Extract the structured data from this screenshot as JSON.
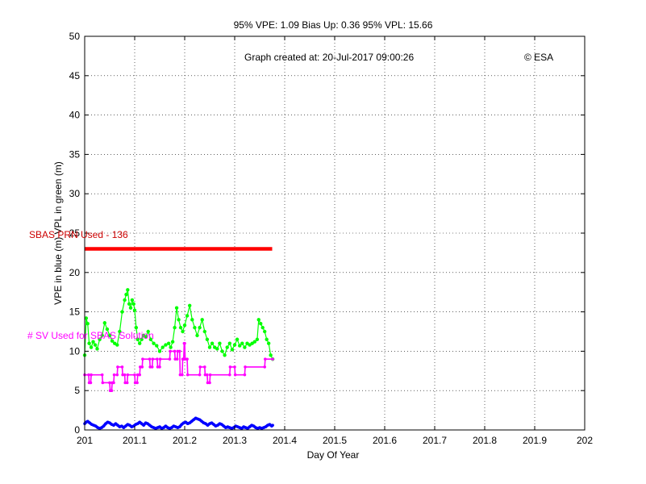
{
  "chart_data": {
    "type": "line",
    "title": "95% VPE: 1.09  Bias Up: 0.36  95% VPL: 15.66",
    "created_note": "Graph created at: 20-Jul-2017 09:00:26",
    "copyright": "© ESA",
    "xlabel": "Day Of Year",
    "ylabel": "VPE in blue (m) VPL in green (m)",
    "xlim": [
      201,
      202
    ],
    "ylim": [
      0,
      50
    ],
    "xticks": [
      "201",
      "201.1",
      "201.2",
      "201.3",
      "201.4",
      "201.5",
      "201.6",
      "201.7",
      "201.8",
      "201.9",
      "202"
    ],
    "yticks": [
      "0",
      "5",
      "10",
      "15",
      "20",
      "25",
      "30",
      "35",
      "40",
      "45",
      "50"
    ],
    "grid": true,
    "annotations": {
      "prn_label": "SBAS PRN Used - 136",
      "sv_label": "# SV Used for SBAS Solution"
    },
    "colors": {
      "vpe": "#0000ff",
      "vpl": "#00ff00",
      "prn": "#ff0000",
      "sv": "#ff00ff",
      "annotation_red": "#cc0000",
      "annotation_magenta": "#ff00ff"
    },
    "series": [
      {
        "key": "vpl",
        "points": [
          [
            201.0,
            9.5
          ],
          [
            201.003,
            14.2
          ],
          [
            201.006,
            13.5
          ],
          [
            201.009,
            11.0
          ],
          [
            201.013,
            10.5
          ],
          [
            201.017,
            11.2
          ],
          [
            201.021,
            10.8
          ],
          [
            201.025,
            10.3
          ],
          [
            201.03,
            11.5
          ],
          [
            201.035,
            12.0
          ],
          [
            201.04,
            13.6
          ],
          [
            201.045,
            12.8
          ],
          [
            201.05,
            12.0
          ],
          [
            201.055,
            11.3
          ],
          [
            201.06,
            11.0
          ],
          [
            201.065,
            10.8
          ],
          [
            201.07,
            12.5
          ],
          [
            201.075,
            15.0
          ],
          [
            201.08,
            16.5
          ],
          [
            201.083,
            17.2
          ],
          [
            201.086,
            17.8
          ],
          [
            201.089,
            16.0
          ],
          [
            201.092,
            15.5
          ],
          [
            201.095,
            16.5
          ],
          [
            201.098,
            16.0
          ],
          [
            201.1,
            15.2
          ],
          [
            201.103,
            13.0
          ],
          [
            201.106,
            11.5
          ],
          [
            201.11,
            11.0
          ],
          [
            201.114,
            11.5
          ],
          [
            201.118,
            12.0
          ],
          [
            201.122,
            11.8
          ],
          [
            201.127,
            12.5
          ],
          [
            201.132,
            11.5
          ],
          [
            201.138,
            11.0
          ],
          [
            201.144,
            10.7
          ],
          [
            201.15,
            10.0
          ],
          [
            201.156,
            10.5
          ],
          [
            201.162,
            10.8
          ],
          [
            201.168,
            11.0
          ],
          [
            201.172,
            10.5
          ],
          [
            201.176,
            11.2
          ],
          [
            201.18,
            13.0
          ],
          [
            201.184,
            15.5
          ],
          [
            201.188,
            14.0
          ],
          [
            201.192,
            13.0
          ],
          [
            201.196,
            12.5
          ],
          [
            201.2,
            13.3
          ],
          [
            201.205,
            14.5
          ],
          [
            201.21,
            15.8
          ],
          [
            201.215,
            14.0
          ],
          [
            201.22,
            13.0
          ],
          [
            201.225,
            12.0
          ],
          [
            201.23,
            13.0
          ],
          [
            201.235,
            14.0
          ],
          [
            201.24,
            12.5
          ],
          [
            201.245,
            11.5
          ],
          [
            201.25,
            10.5
          ],
          [
            201.255,
            11.0
          ],
          [
            201.26,
            10.5
          ],
          [
            201.265,
            10.3
          ],
          [
            201.27,
            11.0
          ],
          [
            201.275,
            10.0
          ],
          [
            201.28,
            9.5
          ],
          [
            201.285,
            10.5
          ],
          [
            201.29,
            11.0
          ],
          [
            201.295,
            10.2
          ],
          [
            201.3,
            10.8
          ],
          [
            201.305,
            11.5
          ],
          [
            201.31,
            10.7
          ],
          [
            201.315,
            11.0
          ],
          [
            201.32,
            10.5
          ],
          [
            201.325,
            11.0
          ],
          [
            201.33,
            10.8
          ],
          [
            201.335,
            11.0
          ],
          [
            201.34,
            11.2
          ],
          [
            201.345,
            11.5
          ],
          [
            201.348,
            14.0
          ],
          [
            201.352,
            13.5
          ],
          [
            201.356,
            13.0
          ],
          [
            201.36,
            12.5
          ],
          [
            201.364,
            11.5
          ],
          [
            201.368,
            11.0
          ],
          [
            201.372,
            9.5
          ],
          [
            201.376,
            9.0
          ]
        ]
      },
      {
        "key": "sv",
        "points": [
          [
            201.0,
            7
          ],
          [
            201.008,
            7
          ],
          [
            201.009,
            6
          ],
          [
            201.012,
            6
          ],
          [
            201.013,
            7
          ],
          [
            201.035,
            7
          ],
          [
            201.036,
            6
          ],
          [
            201.05,
            6
          ],
          [
            201.051,
            5
          ],
          [
            201.054,
            5
          ],
          [
            201.055,
            6
          ],
          [
            201.058,
            6
          ],
          [
            201.059,
            7
          ],
          [
            201.065,
            7
          ],
          [
            201.066,
            8
          ],
          [
            201.075,
            8
          ],
          [
            201.076,
            7
          ],
          [
            201.08,
            7
          ],
          [
            201.081,
            6
          ],
          [
            201.085,
            6
          ],
          [
            201.086,
            7
          ],
          [
            201.1,
            7
          ],
          [
            201.101,
            6
          ],
          [
            201.105,
            6
          ],
          [
            201.106,
            7
          ],
          [
            201.11,
            7
          ],
          [
            201.111,
            8
          ],
          [
            201.115,
            8
          ],
          [
            201.116,
            9
          ],
          [
            201.13,
            9
          ],
          [
            201.131,
            8
          ],
          [
            201.135,
            8
          ],
          [
            201.136,
            9
          ],
          [
            201.145,
            9
          ],
          [
            201.146,
            8
          ],
          [
            201.15,
            8
          ],
          [
            201.151,
            9
          ],
          [
            201.17,
            9
          ],
          [
            201.171,
            10
          ],
          [
            201.18,
            10
          ],
          [
            201.181,
            9
          ],
          [
            201.185,
            9
          ],
          [
            201.186,
            10
          ],
          [
            201.19,
            10
          ],
          [
            201.191,
            7
          ],
          [
            201.195,
            7
          ],
          [
            201.196,
            9
          ],
          [
            201.198,
            9
          ],
          [
            201.199,
            11
          ],
          [
            201.2,
            11
          ],
          [
            201.201,
            9
          ],
          [
            201.205,
            9
          ],
          [
            201.206,
            7
          ],
          [
            201.23,
            7
          ],
          [
            201.231,
            8
          ],
          [
            201.24,
            8
          ],
          [
            201.241,
            7
          ],
          [
            201.245,
            7
          ],
          [
            201.246,
            6
          ],
          [
            201.25,
            6
          ],
          [
            201.251,
            7
          ],
          [
            201.29,
            7
          ],
          [
            201.291,
            8
          ],
          [
            201.3,
            8
          ],
          [
            201.301,
            7
          ],
          [
            201.32,
            7
          ],
          [
            201.321,
            8
          ],
          [
            201.36,
            8
          ],
          [
            201.361,
            9
          ],
          [
            201.376,
            9
          ]
        ]
      },
      {
        "key": "vpe",
        "points": [
          [
            201.0,
            0.8
          ],
          [
            201.003,
            1.0
          ],
          [
            201.006,
            1.1
          ],
          [
            201.01,
            0.9
          ],
          [
            201.014,
            0.7
          ],
          [
            201.018,
            0.6
          ],
          [
            201.022,
            0.5
          ],
          [
            201.026,
            0.3
          ],
          [
            201.03,
            0.2
          ],
          [
            201.034,
            0.3
          ],
          [
            201.038,
            0.5
          ],
          [
            201.042,
            0.8
          ],
          [
            201.046,
            1.0
          ],
          [
            201.05,
            0.9
          ],
          [
            201.054,
            0.7
          ],
          [
            201.058,
            0.6
          ],
          [
            201.062,
            0.8
          ],
          [
            201.066,
            0.6
          ],
          [
            201.07,
            0.4
          ],
          [
            201.074,
            0.5
          ],
          [
            201.078,
            0.3
          ],
          [
            201.082,
            0.5
          ],
          [
            201.086,
            0.7
          ],
          [
            201.09,
            0.6
          ],
          [
            201.094,
            0.4
          ],
          [
            201.098,
            0.5
          ],
          [
            201.102,
            0.7
          ],
          [
            201.106,
            0.8
          ],
          [
            201.11,
            1.0
          ],
          [
            201.114,
            0.8
          ],
          [
            201.118,
            0.6
          ],
          [
            201.122,
            0.9
          ],
          [
            201.126,
            0.8
          ],
          [
            201.13,
            0.6
          ],
          [
            201.134,
            0.4
          ],
          [
            201.138,
            0.3
          ],
          [
            201.142,
            0.2
          ],
          [
            201.146,
            0.3
          ],
          [
            201.15,
            0.4
          ],
          [
            201.154,
            0.2
          ],
          [
            201.158,
            0.3
          ],
          [
            201.162,
            0.5
          ],
          [
            201.166,
            0.3
          ],
          [
            201.17,
            0.2
          ],
          [
            201.174,
            0.3
          ],
          [
            201.178,
            0.5
          ],
          [
            201.182,
            0.4
          ],
          [
            201.186,
            0.3
          ],
          [
            201.19,
            0.4
          ],
          [
            201.194,
            0.7
          ],
          [
            201.198,
            0.9
          ],
          [
            201.202,
            1.0
          ],
          [
            201.206,
            0.8
          ],
          [
            201.21,
            0.9
          ],
          [
            201.214,
            1.1
          ],
          [
            201.218,
            1.3
          ],
          [
            201.222,
            1.5
          ],
          [
            201.226,
            1.4
          ],
          [
            201.23,
            1.3
          ],
          [
            201.234,
            1.1
          ],
          [
            201.238,
            0.9
          ],
          [
            201.242,
            0.8
          ],
          [
            201.246,
            0.6
          ],
          [
            201.25,
            0.8
          ],
          [
            201.254,
            0.9
          ],
          [
            201.258,
            0.7
          ],
          [
            201.262,
            0.5
          ],
          [
            201.266,
            0.6
          ],
          [
            201.27,
            0.8
          ],
          [
            201.274,
            0.7
          ],
          [
            201.278,
            0.5
          ],
          [
            201.282,
            0.3
          ],
          [
            201.286,
            0.4
          ],
          [
            201.29,
            0.3
          ],
          [
            201.294,
            0.2
          ],
          [
            201.298,
            0.3
          ],
          [
            201.302,
            0.5
          ],
          [
            201.306,
            0.4
          ],
          [
            201.31,
            0.3
          ],
          [
            201.314,
            0.2
          ],
          [
            201.318,
            0.4
          ],
          [
            201.322,
            0.3
          ],
          [
            201.326,
            0.2
          ],
          [
            201.33,
            0.4
          ],
          [
            201.334,
            0.6
          ],
          [
            201.338,
            0.5
          ],
          [
            201.342,
            0.3
          ],
          [
            201.346,
            0.2
          ],
          [
            201.35,
            0.3
          ],
          [
            201.354,
            0.2
          ],
          [
            201.358,
            0.3
          ],
          [
            201.362,
            0.4
          ],
          [
            201.366,
            0.6
          ],
          [
            201.37,
            0.7
          ],
          [
            201.374,
            0.5
          ],
          [
            201.376,
            0.6
          ]
        ]
      },
      {
        "key": "prn",
        "points": [
          [
            201.0,
            23
          ],
          [
            201.375,
            23
          ]
        ]
      }
    ]
  }
}
